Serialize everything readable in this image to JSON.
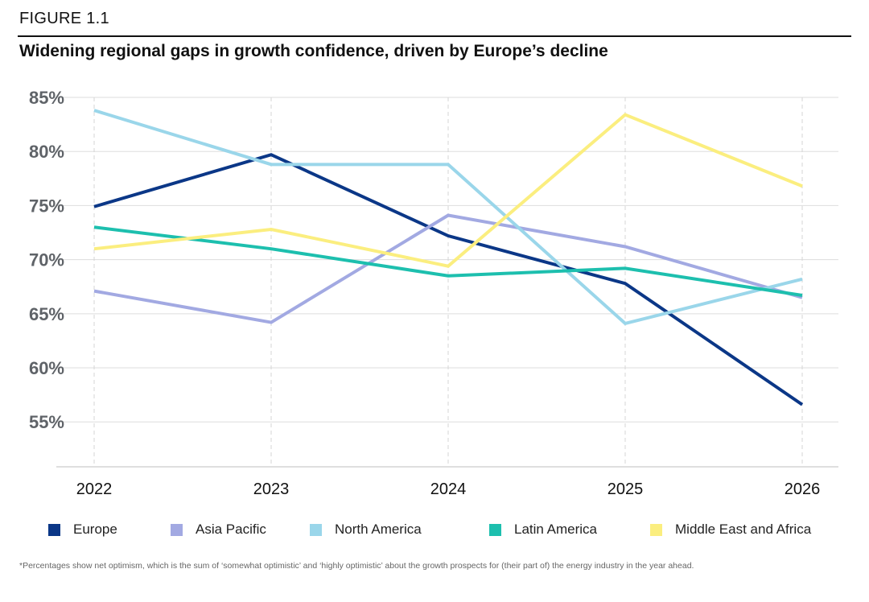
{
  "figure_label": "FIGURE 1.1",
  "title": "Widening regional gaps in growth confidence, driven by Europe’s decline",
  "footnote": "*Percentages show net optimism, which is the sum of ‘somewhat optimistic’ and ‘highly optimistic’ about the growth prospects for (their part of) the energy industry in the year ahead.",
  "chart_data": {
    "type": "line",
    "title": "Widening regional gaps in growth confidence, driven by Europe’s decline",
    "xlabel": "",
    "ylabel": "",
    "categories": [
      "2022",
      "2023",
      "2024",
      "2025",
      "2026"
    ],
    "ylim": [
      51,
      85
    ],
    "yticks": [
      85,
      80,
      75,
      70,
      65,
      60,
      55
    ],
    "ytick_labels": [
      "85%",
      "80%",
      "75%",
      "70%",
      "65%",
      "60%",
      "55%"
    ],
    "grid": true,
    "legend_position": "bottom",
    "series": [
      {
        "name": "Europe",
        "color": "#0b3787",
        "values": [
          74.9,
          79.7,
          72.2,
          67.8,
          56.6
        ]
      },
      {
        "name": "Asia Pacific",
        "color": "#a2a9e2",
        "values": [
          67.1,
          64.2,
          74.1,
          71.2,
          66.5
        ]
      },
      {
        "name": "North America",
        "color": "#9ad6ea",
        "values": [
          83.8,
          78.8,
          78.8,
          64.1,
          68.2
        ]
      },
      {
        "name": "Latin America",
        "color": "#1dbfae",
        "values": [
          73.0,
          71.0,
          68.5,
          69.2,
          66.7
        ]
      },
      {
        "name": "Middle East and Africa",
        "color": "#fbee7f",
        "values": [
          71.0,
          72.8,
          69.4,
          83.4,
          76.8
        ]
      }
    ]
  }
}
